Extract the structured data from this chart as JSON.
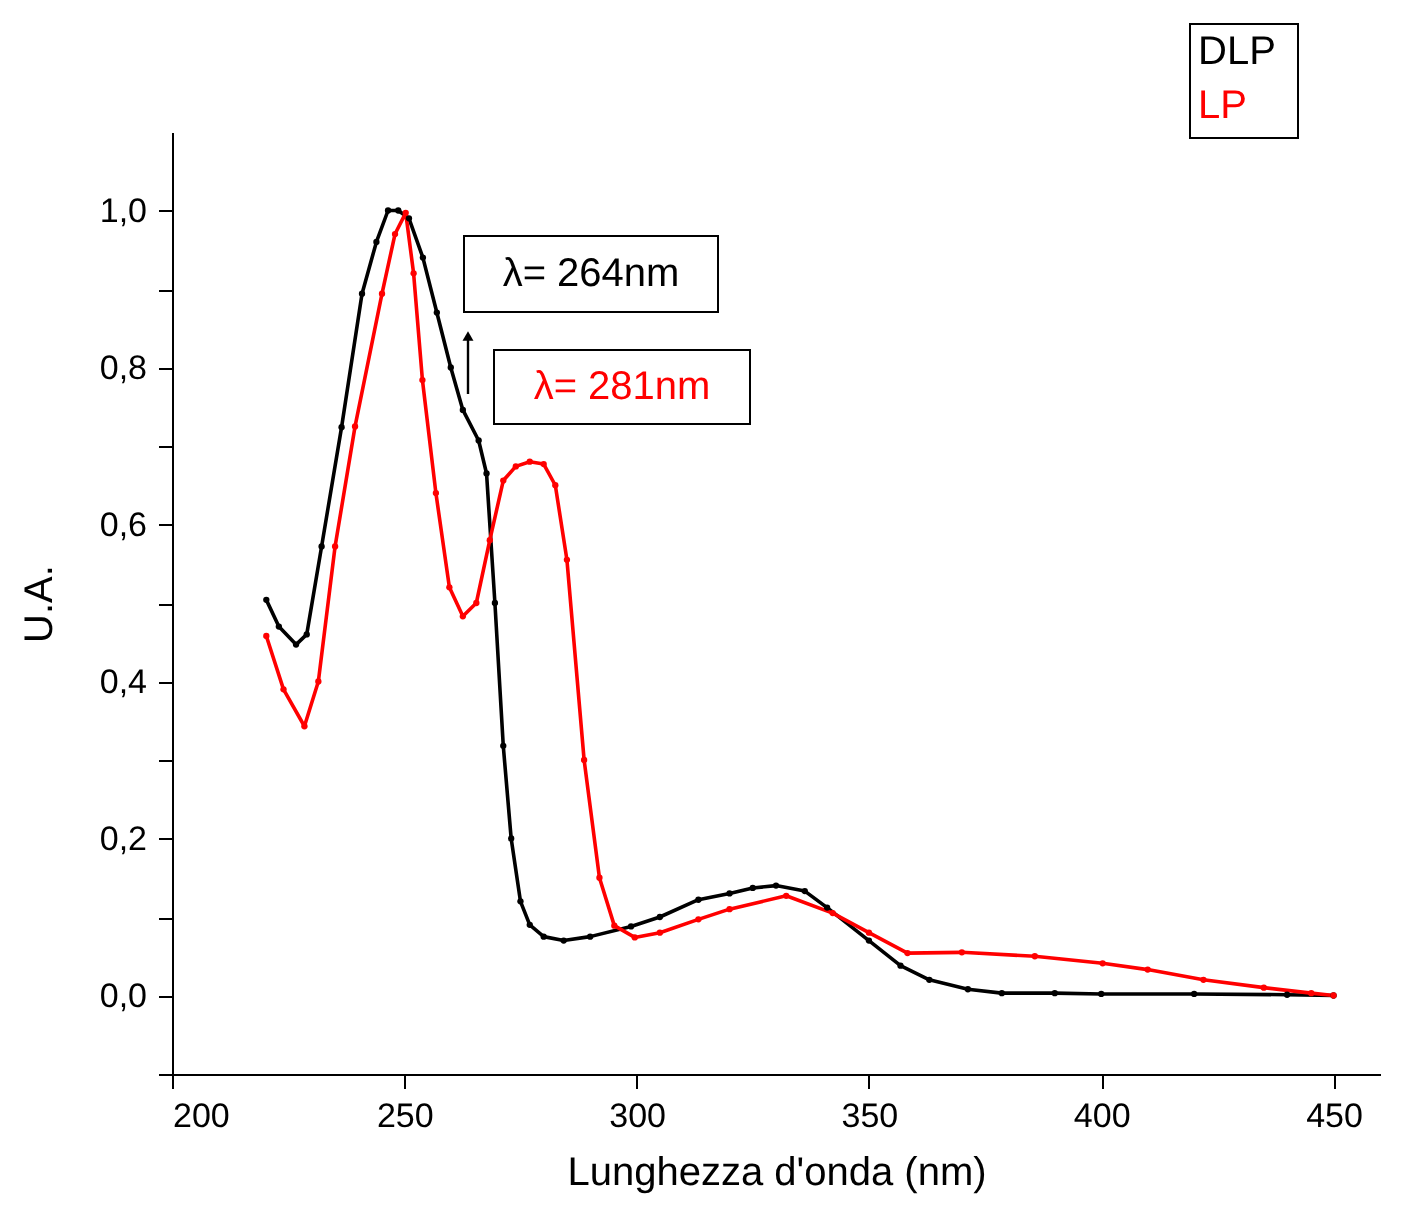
{
  "chart_data": {
    "type": "line",
    "xlabel": "Lunghezza d'onda (nm)",
    "ylabel": "U.A.",
    "xlim": [
      200,
      460
    ],
    "xticks": [
      200,
      250,
      300,
      350,
      400,
      450
    ],
    "ylim": [
      -0.1,
      1.1
    ],
    "yticks": [
      {
        "value": -0.1,
        "label": null
      },
      {
        "value": 0.0,
        "label": "0,0"
      },
      {
        "value": 0.1,
        "label": null
      },
      {
        "value": 0.2,
        "label": "0,2"
      },
      {
        "value": 0.3,
        "label": null
      },
      {
        "value": 0.4,
        "label": "0,4"
      },
      {
        "value": 0.5,
        "label": null
      },
      {
        "value": 0.6,
        "label": "0,6"
      },
      {
        "value": 0.7,
        "label": null
      },
      {
        "value": 0.8,
        "label": "0,8"
      },
      {
        "value": 0.9,
        "label": null
      },
      {
        "value": 1.0,
        "label": "1,0"
      }
    ],
    "grid": false,
    "legend": "top right",
    "marker": "circle",
    "line_style": "solid",
    "annotations": [
      "λ= 264nm",
      "λ= 281nm"
    ],
    "series": [
      {
        "name": "DLP",
        "color": "#000000",
        "x": [
          220.3,
          223,
          226.7,
          229,
          232.2,
          236.5,
          240.9,
          244,
          246.5,
          248.7,
          251,
          254,
          257,
          260,
          262.6,
          266,
          267.7,
          269.5,
          271.3,
          273,
          275,
          277,
          280,
          284.3,
          290,
          298.8,
          305,
          313.3,
          320,
          325,
          330,
          336.2,
          341,
          350,
          356.8,
          363,
          371.3,
          378.6,
          390,
          400,
          420,
          440,
          450
        ],
        "values": [
          0.504,
          0.47,
          0.447,
          0.46,
          0.572,
          0.724,
          0.894,
          0.96,
          1.0,
          1.0,
          0.99,
          0.94,
          0.87,
          0.8,
          0.746,
          0.707,
          0.665,
          0.5,
          0.318,
          0.2,
          0.12,
          0.09,
          0.075,
          0.07,
          0.075,
          0.088,
          0.1,
          0.122,
          0.13,
          0.137,
          0.14,
          0.133,
          0.112,
          0.07,
          0.038,
          0.02,
          0.008,
          0.003,
          0.003,
          0.002,
          0.002,
          0.001,
          0.0
        ]
      },
      {
        "name": "LP",
        "color": "#ff0000",
        "x": [
          220.3,
          224,
          228.5,
          231.5,
          235.1,
          239.4,
          245.2,
          248,
          250.3,
          252,
          253.9,
          256.8,
          259.7,
          262.6,
          265.5,
          268.4,
          271.3,
          274,
          277,
          280,
          282.5,
          285,
          288.7,
          292,
          295.2,
          299.6,
          305,
          313.3,
          320,
          332.2,
          342.2,
          350,
          358.3,
          370,
          385.7,
          400.3,
          410,
          422,
          435,
          445.2,
          450
        ],
        "values": [
          0.458,
          0.39,
          0.343,
          0.4,
          0.572,
          0.725,
          0.894,
          0.97,
          0.997,
          0.92,
          0.784,
          0.64,
          0.52,
          0.483,
          0.5,
          0.58,
          0.656,
          0.674,
          0.68,
          0.677,
          0.65,
          0.555,
          0.3,
          0.15,
          0.089,
          0.074,
          0.08,
          0.097,
          0.11,
          0.127,
          0.105,
          0.08,
          0.054,
          0.055,
          0.05,
          0.041,
          0.033,
          0.02,
          0.01,
          0.003,
          0.0
        ]
      }
    ]
  }
}
